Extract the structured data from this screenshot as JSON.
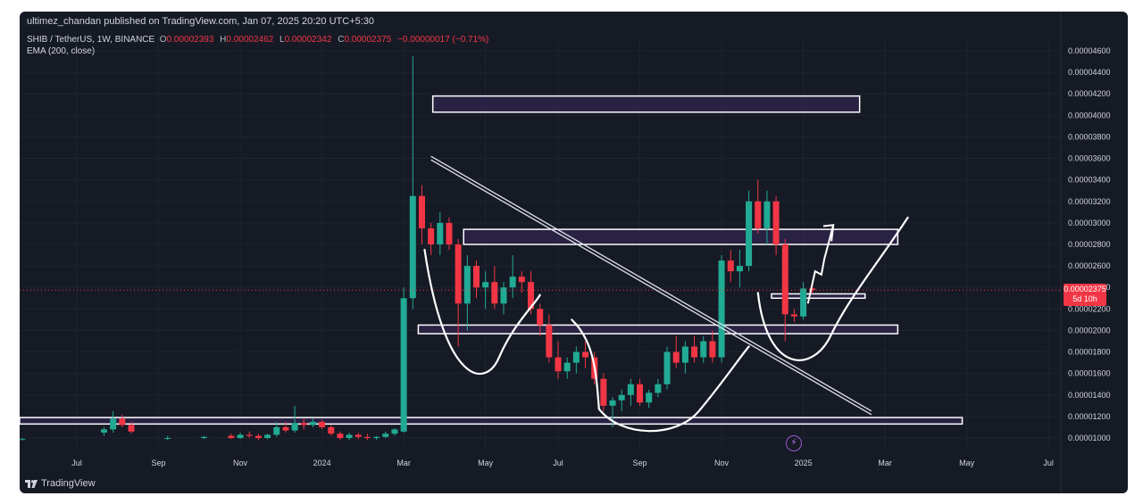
{
  "header": {
    "publisher": "ultimez_chandan published on TradingView.com, Jan 07, 2025 20:20 UTC+5:30"
  },
  "legend": {
    "symbol": "SHIB / TetherUS, 1W, BINANCE",
    "o_label": "O",
    "o_value": "0.00002393",
    "h_label": "H",
    "h_value": "0.00002462",
    "l_label": "L",
    "l_value": "0.00002342",
    "c_label": "C",
    "c_value": "0.00002375",
    "change": "−0.00000017 (−0.71%)",
    "indicator": "EMA (200, close)"
  },
  "price_tag": {
    "price": "0.00002375",
    "countdown": "5d 10h"
  },
  "footer": {
    "brand": "TradingView"
  },
  "colors": {
    "up": "#22ab94",
    "down": "#f23645",
    "background": "#161a25",
    "zone_fill": "#3a2a5c"
  },
  "chart_data": {
    "type": "candlestick",
    "y_ticks": [
      "0.00001000",
      "0.00001200",
      "0.00001400",
      "0.00001600",
      "0.00001800",
      "0.00002000",
      "0.00002200",
      "0.00002400",
      "0.00002600",
      "0.00002800",
      "0.00003000",
      "0.00003200",
      "0.00003400",
      "0.00003600",
      "0.00003800",
      "0.00004000",
      "0.00004200",
      "0.00004400",
      "0.00004600"
    ],
    "y_tick_values": [
      1.0,
      1.2,
      1.4,
      1.6,
      1.8,
      2.0,
      2.2,
      2.4,
      2.6,
      2.8,
      3.0,
      3.2,
      3.4,
      3.6,
      3.8,
      4.0,
      4.2,
      4.4,
      4.6
    ],
    "x_ticks": [
      {
        "label": "Jul",
        "week": 0
      },
      {
        "label": "Sep",
        "week": 9
      },
      {
        "label": "Nov",
        "week": 18
      },
      {
        "label": "2024",
        "week": 27
      },
      {
        "label": "Mar",
        "week": 36
      },
      {
        "label": "May",
        "week": 45
      },
      {
        "label": "Jul",
        "week": 53
      },
      {
        "label": "Sep",
        "week": 62
      },
      {
        "label": "Nov",
        "week": 71
      },
      {
        "label": "2025",
        "week": 80
      },
      {
        "label": "Mar",
        "week": 89
      },
      {
        "label": "May",
        "week": 98
      },
      {
        "label": "Jul",
        "week": 107
      }
    ],
    "y_scale_unit": "1e-5 USDT",
    "last_price": 2.375,
    "candles": [
      [
        -6,
        0.99,
        1.0,
        0.98,
        0.99
      ],
      [
        3,
        1.05,
        1.1,
        1.02,
        1.08
      ],
      [
        4,
        1.08,
        1.25,
        1.05,
        1.18
      ],
      [
        5,
        1.18,
        1.22,
        1.1,
        1.12
      ],
      [
        6,
        1.12,
        1.15,
        1.04,
        1.06
      ],
      [
        10,
        1.0,
        1.02,
        0.98,
        1.0
      ],
      [
        14,
        1.0,
        1.02,
        0.99,
        1.01
      ],
      [
        17,
        1.02,
        1.04,
        0.99,
        1.0
      ],
      [
        18,
        1.0,
        1.05,
        0.99,
        1.03
      ],
      [
        19,
        1.03,
        1.06,
        1.0,
        1.02
      ],
      [
        20,
        1.02,
        1.04,
        0.98,
        1.0
      ],
      [
        21,
        1.0,
        1.04,
        0.99,
        1.03
      ],
      [
        22,
        1.03,
        1.15,
        1.01,
        1.1
      ],
      [
        23,
        1.1,
        1.15,
        1.05,
        1.07
      ],
      [
        24,
        1.07,
        1.3,
        1.05,
        1.14
      ],
      [
        25,
        1.14,
        1.18,
        1.08,
        1.12
      ],
      [
        26,
        1.12,
        1.18,
        1.1,
        1.15
      ],
      [
        27,
        1.15,
        1.17,
        1.08,
        1.1
      ],
      [
        28,
        1.1,
        1.12,
        1.02,
        1.04
      ],
      [
        29,
        1.04,
        1.06,
        0.98,
        1.0
      ],
      [
        30,
        1.0,
        1.05,
        0.98,
        1.03
      ],
      [
        31,
        1.03,
        1.05,
        0.99,
        1.01
      ],
      [
        32,
        1.01,
        1.04,
        0.98,
        1.0
      ],
      [
        33,
        1.0,
        1.02,
        0.98,
        1.01
      ],
      [
        34,
        1.01,
        1.06,
        1.0,
        1.04
      ],
      [
        35,
        1.04,
        1.09,
        1.02,
        1.08
      ],
      [
        36,
        1.06,
        2.4,
        1.05,
        2.3
      ],
      [
        37,
        2.3,
        4.55,
        2.2,
        3.25
      ],
      [
        38,
        3.25,
        3.35,
        2.8,
        2.95
      ],
      [
        39,
        2.95,
        3.0,
        2.7,
        2.8
      ],
      [
        40,
        2.8,
        3.1,
        2.7,
        3.0
      ],
      [
        41,
        3.0,
        3.05,
        2.75,
        2.8
      ],
      [
        42,
        2.8,
        2.85,
        1.85,
        2.25
      ],
      [
        43,
        2.25,
        2.7,
        2.0,
        2.6
      ],
      [
        44,
        2.6,
        2.65,
        2.3,
        2.4
      ],
      [
        45,
        2.4,
        2.55,
        2.2,
        2.45
      ],
      [
        46,
        2.45,
        2.6,
        2.2,
        2.25
      ],
      [
        47,
        2.25,
        2.45,
        2.15,
        2.4
      ],
      [
        48,
        2.4,
        2.7,
        2.3,
        2.5
      ],
      [
        49,
        2.5,
        2.55,
        2.35,
        2.45
      ],
      [
        50,
        2.45,
        2.55,
        2.15,
        2.2
      ],
      [
        51,
        2.2,
        2.25,
        1.95,
        2.05
      ],
      [
        52,
        2.05,
        2.15,
        1.7,
        1.75
      ],
      [
        53,
        1.75,
        1.9,
        1.55,
        1.62
      ],
      [
        54,
        1.62,
        1.75,
        1.55,
        1.7
      ],
      [
        55,
        1.7,
        1.85,
        1.6,
        1.8
      ],
      [
        56,
        1.8,
        1.9,
        1.65,
        1.75
      ],
      [
        57,
        1.75,
        1.8,
        1.5,
        1.55
      ],
      [
        58,
        1.55,
        1.6,
        1.25,
        1.3
      ],
      [
        59,
        1.3,
        1.38,
        1.1,
        1.35
      ],
      [
        60,
        1.35,
        1.45,
        1.25,
        1.4
      ],
      [
        61,
        1.4,
        1.55,
        1.3,
        1.5
      ],
      [
        62,
        1.5,
        1.55,
        1.3,
        1.33
      ],
      [
        63,
        1.33,
        1.45,
        1.28,
        1.42
      ],
      [
        64,
        1.42,
        1.55,
        1.38,
        1.5
      ],
      [
        65,
        1.5,
        1.85,
        1.45,
        1.8
      ],
      [
        66,
        1.8,
        1.95,
        1.65,
        1.7
      ],
      [
        67,
        1.7,
        1.9,
        1.6,
        1.85
      ],
      [
        68,
        1.85,
        1.95,
        1.7,
        1.75
      ],
      [
        69,
        1.75,
        1.95,
        1.7,
        1.9
      ],
      [
        70,
        1.9,
        2.0,
        1.7,
        1.75
      ],
      [
        71,
        1.75,
        2.7,
        1.7,
        2.65
      ],
      [
        72,
        2.65,
        2.75,
        2.45,
        2.55
      ],
      [
        73,
        2.55,
        2.75,
        2.4,
        2.6
      ],
      [
        74,
        2.6,
        3.3,
        2.55,
        3.2
      ],
      [
        75,
        3.2,
        3.4,
        2.9,
        2.95
      ],
      [
        76,
        2.95,
        3.3,
        2.8,
        3.2
      ],
      [
        77,
        3.2,
        3.25,
        2.7,
        2.8
      ],
      [
        78,
        2.8,
        2.85,
        1.9,
        2.15
      ],
      [
        79,
        2.15,
        2.2,
        2.08,
        2.13
      ],
      [
        80,
        2.13,
        2.45,
        2.1,
        2.39
      ],
      [
        81,
        2.39,
        2.46,
        2.34,
        2.375
      ]
    ]
  }
}
